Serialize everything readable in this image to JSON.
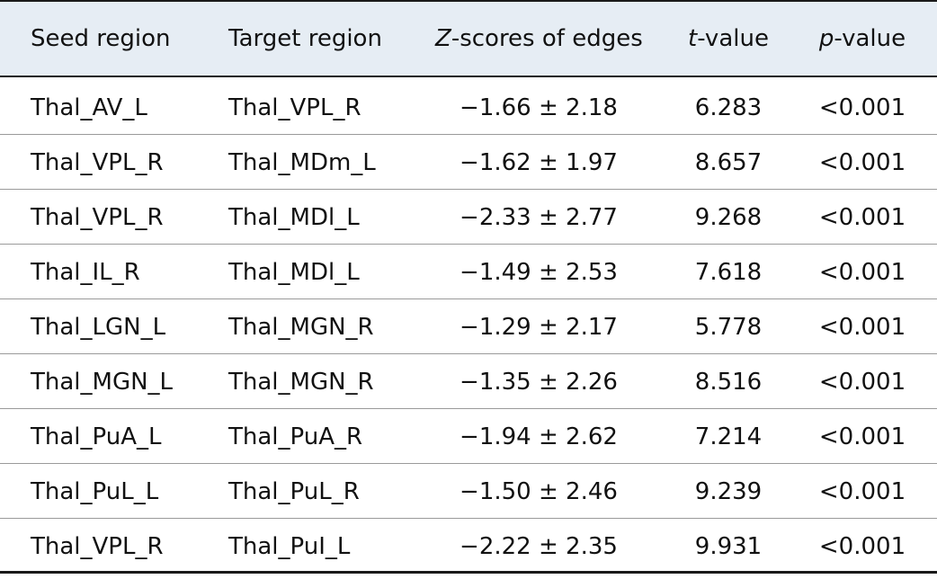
{
  "table": {
    "headers": {
      "seed": "Seed region",
      "target": "Target region",
      "z_ital": "Z",
      "z_rest": "-scores of edges",
      "t_ital": "t",
      "t_rest": "-value",
      "p_ital": "p",
      "p_rest": "-value"
    },
    "rows": [
      {
        "seed": "Thal_AV_L",
        "target": "Thal_VPL_R",
        "z": "−1.66 ± 2.18",
        "t": "6.283",
        "p": "<0.001"
      },
      {
        "seed": "Thal_VPL_R",
        "target": "Thal_MDm_L",
        "z": "−1.62 ± 1.97",
        "t": "8.657",
        "p": "<0.001"
      },
      {
        "seed": "Thal_VPL_R",
        "target": "Thal_MDl_L",
        "z": "−2.33 ± 2.77",
        "t": "9.268",
        "p": "<0.001"
      },
      {
        "seed": "Thal_IL_R",
        "target": "Thal_MDl_L",
        "z": "−1.49 ± 2.53",
        "t": "7.618",
        "p": "<0.001"
      },
      {
        "seed": "Thal_LGN_L",
        "target": "Thal_MGN_R",
        "z": "−1.29 ± 2.17",
        "t": "5.778",
        "p": "<0.001"
      },
      {
        "seed": "Thal_MGN_L",
        "target": "Thal_MGN_R",
        "z": "−1.35 ± 2.26",
        "t": "8.516",
        "p": "<0.001"
      },
      {
        "seed": "Thal_PuA_L",
        "target": "Thal_PuA_R",
        "z": "−1.94 ± 2.62",
        "t": "7.214",
        "p": "<0.001"
      },
      {
        "seed": "Thal_PuL_L",
        "target": "Thal_PuL_R",
        "z": "−1.50 ± 2.46",
        "t": "9.239",
        "p": "<0.001"
      },
      {
        "seed": "Thal_VPL_R",
        "target": "Thal_PuI_L",
        "z": "−2.22 ± 2.35",
        "t": "9.931",
        "p": "<0.001"
      }
    ],
    "colors": {
      "header_bg": "#e6edf4",
      "rule": "#1a1a1a",
      "row_divider": "#9a9a9a"
    }
  }
}
